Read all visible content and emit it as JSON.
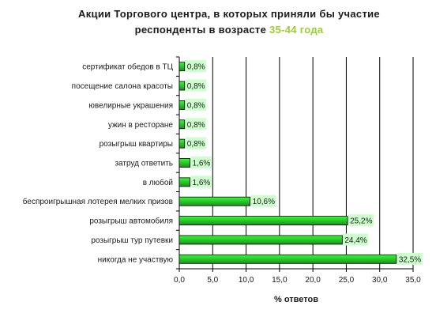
{
  "title": {
    "line1": "Акции Торгового центра, в которых приняли бы участие",
    "line2_prefix": "респонденты в возрасте ",
    "line2_accent": "35-44 года"
  },
  "colors": {
    "accent_text": "#9acd32",
    "bar_light": "#33ff33",
    "bar_dark": "#1f8f1f",
    "label_bg": "#ccffcc"
  },
  "chart_data": {
    "type": "bar",
    "orientation": "horizontal",
    "categories": [
      "сертификат обедов в ТЦ",
      "посещение салона красоты",
      "ювелирные украшения",
      "ужин в ресторане",
      "розыгрыш квартиры",
      "затруд ответить",
      "в любой",
      "беспроигрышная лотерея мелких призов",
      "розыгрыш автомобиля",
      "розыгрыш тур путевки",
      "никогда не участвую"
    ],
    "values": [
      0.8,
      0.8,
      0.8,
      0.8,
      0.8,
      1.6,
      1.6,
      10.6,
      25.2,
      24.4,
      32.5
    ],
    "value_labels": [
      "0,8%",
      "0,8%",
      "0,8%",
      "0,8%",
      "0,8%",
      "1,6%",
      "1,6%",
      "10,6%",
      "25,2%",
      "24,4%",
      "32,5%"
    ],
    "xlim": [
      0,
      35
    ],
    "xticks": [
      "0,0",
      "5,0",
      "10,0",
      "15,0",
      "20,0",
      "25,0",
      "30,0",
      "35,0"
    ],
    "xlabel": "% ответов",
    "grid": true
  }
}
